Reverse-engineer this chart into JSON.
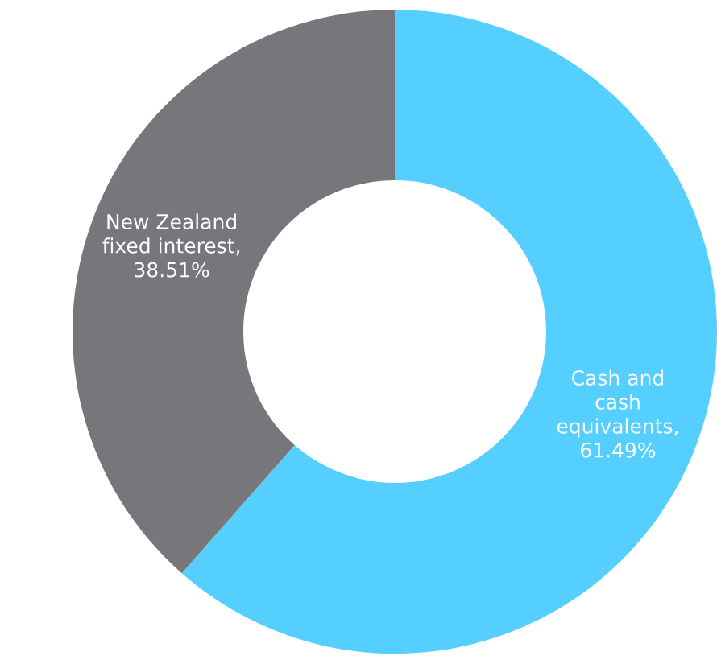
{
  "chart_data": {
    "type": "donut",
    "categories": [
      "Cash and\ncash\nequivalents",
      "New Zealand\nfixed interest"
    ],
    "values": [
      61.49,
      38.51
    ],
    "value_labels": [
      ",\n61.49%",
      ",\n38.51%"
    ],
    "colors": [
      "#55cfff",
      "#77777b"
    ]
  }
}
